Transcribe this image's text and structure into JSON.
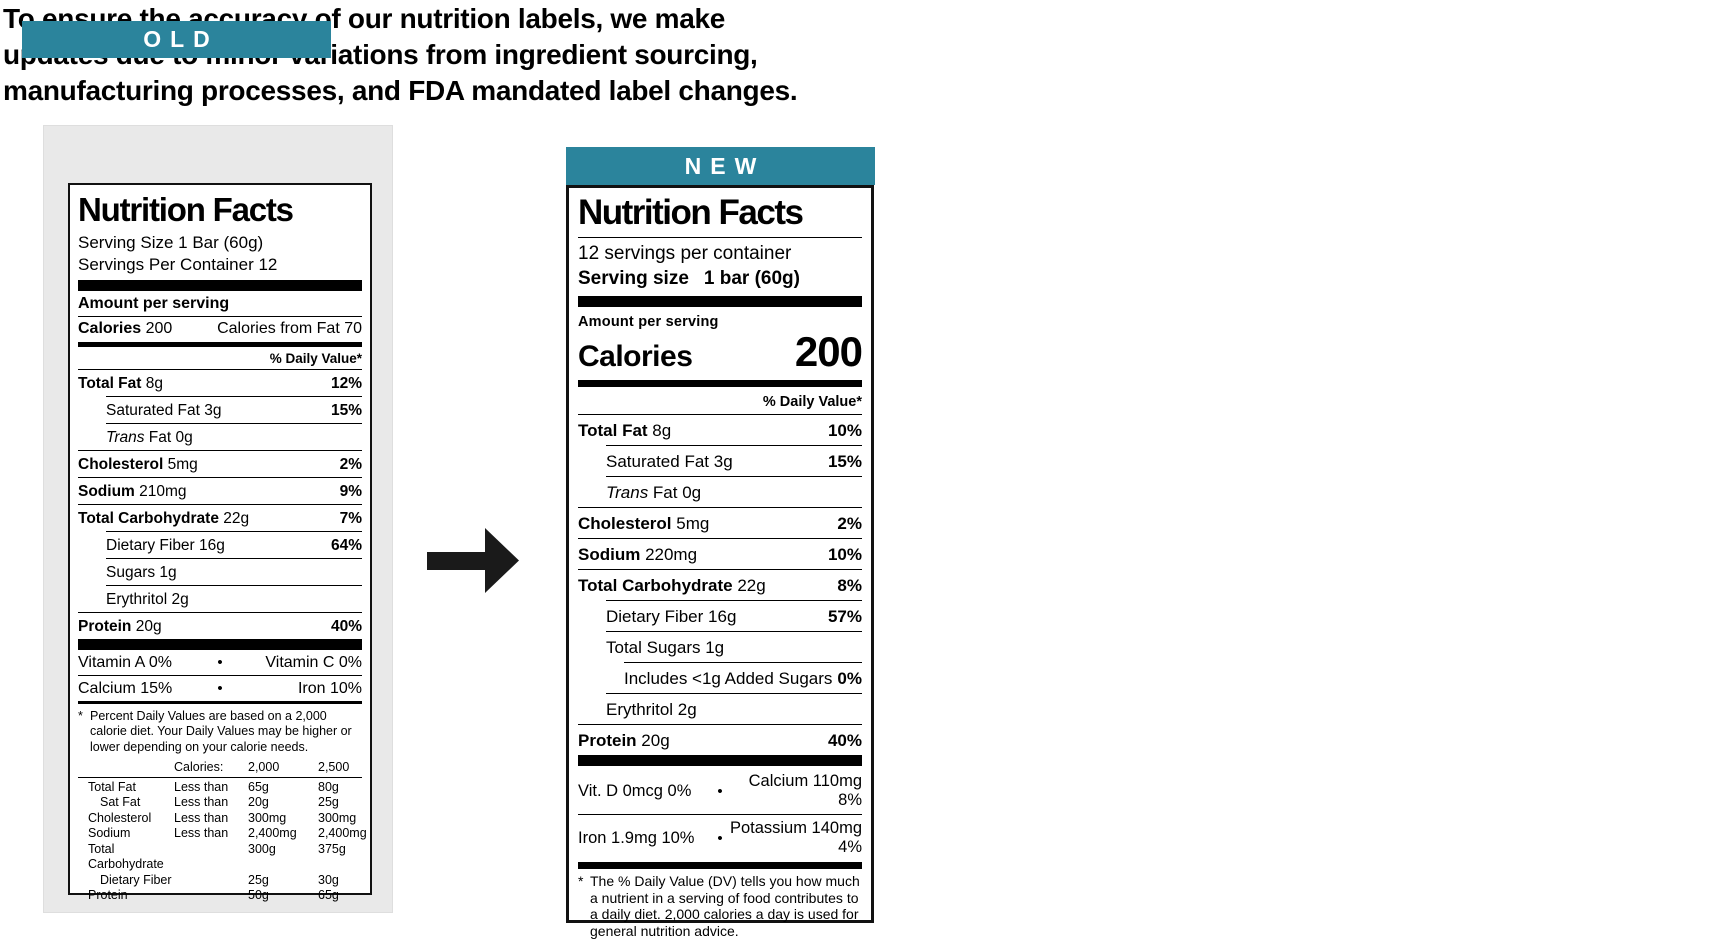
{
  "headline": {
    "lines": [
      "To ensure the accuracy of our nutrition labels, we make",
      "updates due to minor variations from ingredient sourcing,",
      "manufacturing processes, and FDA mandated label changes."
    ]
  },
  "colors": {
    "teal": "#2b849c",
    "panel_gray": "#e9e9e9",
    "ink": "#000000"
  },
  "arrow": {
    "direction": "right"
  },
  "old_label": {
    "tag": "OLD",
    "title": "Nutrition Facts",
    "serving_size": "Serving Size 1 Bar (60g)",
    "servings_per_container": "Servings Per Container 12",
    "amount_heading": "Amount per serving",
    "calories_label": "Calories",
    "calories_value": "200",
    "calories_from_fat": "Calories from Fat 70",
    "dv_heading": "% Daily Value*",
    "rows": [
      {
        "name": "Total Fat",
        "value": "8g",
        "dv": "12%",
        "indent": 0,
        "bold": true
      },
      {
        "name": "Saturated Fat",
        "value": "3g",
        "dv": "15%",
        "indent": 1
      },
      {
        "name": "Trans",
        "value": "Fat 0g",
        "dv": "",
        "indent": 1,
        "italic": true
      },
      {
        "name": "Cholesterol",
        "value": "5mg",
        "dv": "2%",
        "indent": 0,
        "bold": true
      },
      {
        "name": "Sodium",
        "value": "210mg",
        "dv": "9%",
        "indent": 0,
        "bold": true
      },
      {
        "name": "Total Carbohydrate",
        "value": "22g",
        "dv": "7%",
        "indent": 0,
        "bold": true
      },
      {
        "name": "Dietary Fiber",
        "value": "16g",
        "dv": "64%",
        "indent": 1
      },
      {
        "name": "Sugars",
        "value": "1g",
        "dv": "",
        "indent": 1
      },
      {
        "name": "Erythritol",
        "value": "2g",
        "dv": "",
        "indent": 1
      },
      {
        "name": "Protein",
        "value": "20g",
        "dv": "40%",
        "indent": 0,
        "bold": true
      }
    ],
    "vitamins": [
      {
        "left": "Vitamin A 0%",
        "right": "Vitamin C 0%"
      },
      {
        "left": "Calcium 15%",
        "right": "Iron 10%"
      }
    ],
    "footnote_marker": "*",
    "footnote_text": "Percent Daily Values are based on a 2,000 calorie diet. Your Daily Values may be higher or lower depending on your calorie needs.",
    "dv_table": {
      "calories_heading": "Calories:",
      "col_2000": "2,000",
      "col_2500": "2,500",
      "rows": [
        {
          "name": "Total Fat",
          "qual": "Less than",
          "v2000": "65g",
          "v2500": "80g",
          "indent": 0
        },
        {
          "name": "Sat Fat",
          "qual": "Less than",
          "v2000": "20g",
          "v2500": "25g",
          "indent": 1
        },
        {
          "name": "Cholesterol",
          "qual": "Less than",
          "v2000": "300mg",
          "v2500": "300mg",
          "indent": 0
        },
        {
          "name": "Sodium",
          "qual": "Less than",
          "v2000": "2,400mg",
          "v2500": "2,400mg",
          "indent": 0
        },
        {
          "name": "Total Carbohydrate",
          "qual": "",
          "v2000": "300g",
          "v2500": "375g",
          "indent": 0
        },
        {
          "name": "Dietary Fiber",
          "qual": "",
          "v2000": "25g",
          "v2500": "30g",
          "indent": 1
        },
        {
          "name": "Protein",
          "qual": "",
          "v2000": "50g",
          "v2500": "65g",
          "indent": 0
        }
      ]
    }
  },
  "new_label": {
    "tag": "NEW",
    "title": "Nutrition Facts",
    "servings_per_container": "12 servings per container",
    "serving_size_label": "Serving size",
    "serving_size_value": "1 bar (60g)",
    "amount_heading": "Amount per serving",
    "calories_label": "Calories",
    "calories_value": "200",
    "dv_heading": "% Daily Value*",
    "rows": [
      {
        "name": "Total Fat",
        "value": "8g",
        "dv": "10%",
        "indent": 0,
        "bold": true
      },
      {
        "name": "Saturated Fat",
        "value": "3g",
        "dv": "15%",
        "indent": 1
      },
      {
        "name": "Trans",
        "value": "Fat 0g",
        "dv": "",
        "indent": 1,
        "italic": true
      },
      {
        "name": "Cholesterol",
        "value": "5mg",
        "dv": "2%",
        "indent": 0,
        "bold": true
      },
      {
        "name": "Sodium",
        "value": "220mg",
        "dv": "10%",
        "indent": 0,
        "bold": true
      },
      {
        "name": "Total Carbohydrate",
        "value": "22g",
        "dv": "8%",
        "indent": 0,
        "bold": true
      },
      {
        "name": "Dietary Fiber",
        "value": "16g",
        "dv": "57%",
        "indent": 1
      },
      {
        "name": "Total Sugars",
        "value": "1g",
        "dv": "",
        "indent": 1
      },
      {
        "name": "",
        "value": "Includes <1g Added Sugars",
        "dv": "0%",
        "indent": 2
      },
      {
        "name": "Erythritol",
        "value": "2g",
        "dv": "",
        "indent": 1
      },
      {
        "name": "Protein",
        "value": "20g",
        "dv": "40%",
        "indent": 0,
        "bold": true
      }
    ],
    "vitamins": [
      {
        "left": "Vit. D 0mcg 0%",
        "right": "Calcium 110mg 8%"
      },
      {
        "left": "Iron 1.9mg 10%",
        "right": "Potassium 140mg 4%"
      }
    ],
    "footnote_marker": "*",
    "footnote_text": "The % Daily Value (DV) tells you how much a nutrient in a serving of food contributes to a daily diet. 2,000 calories a day is used for general nutrition advice."
  }
}
